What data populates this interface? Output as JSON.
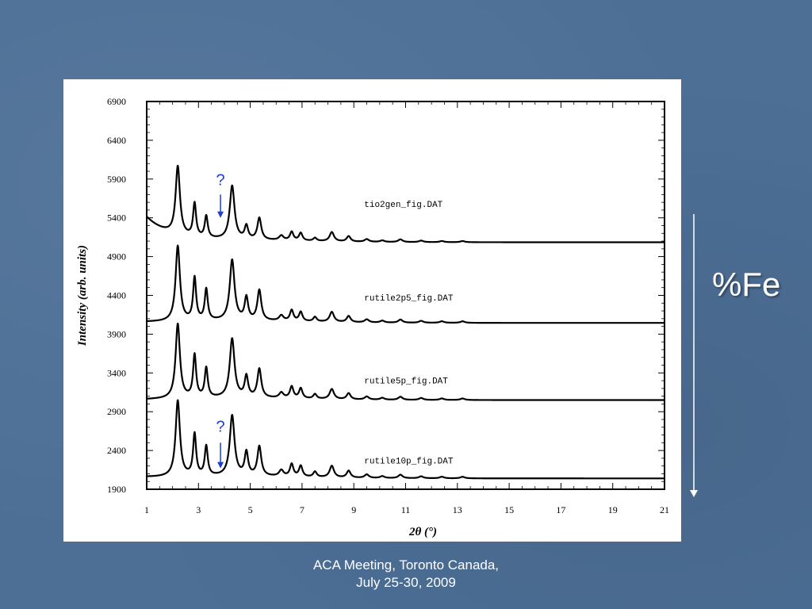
{
  "slide": {
    "side_label": "%Fe",
    "footer": {
      "line1": "ACA Meeting, Toronto Canada,",
      "line2": "July 25-30, 2009"
    }
  },
  "colors": {
    "background": "#4d6f96",
    "curve": "#000000",
    "annotation": "#1a3fd6"
  },
  "chart_data": {
    "type": "line",
    "title": "",
    "xlabel": "2θ (°)",
    "ylabel": "Intensity (arb. units)",
    "xlim": [
      1,
      21
    ],
    "ylim": [
      1900,
      6900
    ],
    "x_ticks": [
      1,
      3,
      5,
      7,
      9,
      11,
      13,
      15,
      17,
      19,
      21
    ],
    "y_ticks": [
      1900,
      2400,
      2900,
      3400,
      3900,
      4400,
      4900,
      5400,
      5900,
      6400,
      6900
    ],
    "grid": false,
    "peaks_2theta": [
      2.2,
      2.85,
      3.3,
      4.3,
      4.85,
      5.35,
      6.2,
      6.6,
      6.95,
      7.5,
      8.15,
      8.8,
      9.5,
      10.1,
      10.8,
      11.6,
      12.4,
      13.2
    ],
    "series": [
      {
        "name": "tio2gen_fig.DAT",
        "start_y": 5400,
        "baseline_y": 5085,
        "peak_heights": [
          880,
          430,
          280,
          690,
          170,
          280,
          60,
          110,
          100,
          40,
          120,
          70,
          35,
          20,
          35,
          20,
          15,
          15
        ]
      },
      {
        "name": "rutile2p5_fig.DAT",
        "start_y": 4050,
        "baseline_y": 4045,
        "peak_heights": [
          970,
          550,
          400,
          780,
          290,
          390,
          70,
          140,
          120,
          60,
          130,
          80,
          40,
          25,
          40,
          25,
          20,
          20
        ]
      },
      {
        "name": "rutile5p_fig.DAT",
        "start_y": 3050,
        "baseline_y": 3050,
        "peak_heights": [
          960,
          550,
          380,
          760,
          270,
          370,
          70,
          150,
          130,
          60,
          130,
          80,
          40,
          25,
          40,
          25,
          20,
          20
        ]
      },
      {
        "name": "rutile10p_fig.DAT",
        "start_y": 2050,
        "baseline_y": 2040,
        "peak_heights": [
          980,
          540,
          380,
          780,
          300,
          380,
          80,
          160,
          140,
          70,
          150,
          90,
          45,
          25,
          45,
          25,
          20,
          20
        ]
      }
    ],
    "annotations": [
      {
        "text": "?",
        "x": 3.85,
        "y_text": 5820,
        "y_from": 5700,
        "y_to": 5400
      },
      {
        "text": "?",
        "x": 3.85,
        "y_text": 2640,
        "y_from": 2500,
        "y_to": 2170
      }
    ]
  }
}
